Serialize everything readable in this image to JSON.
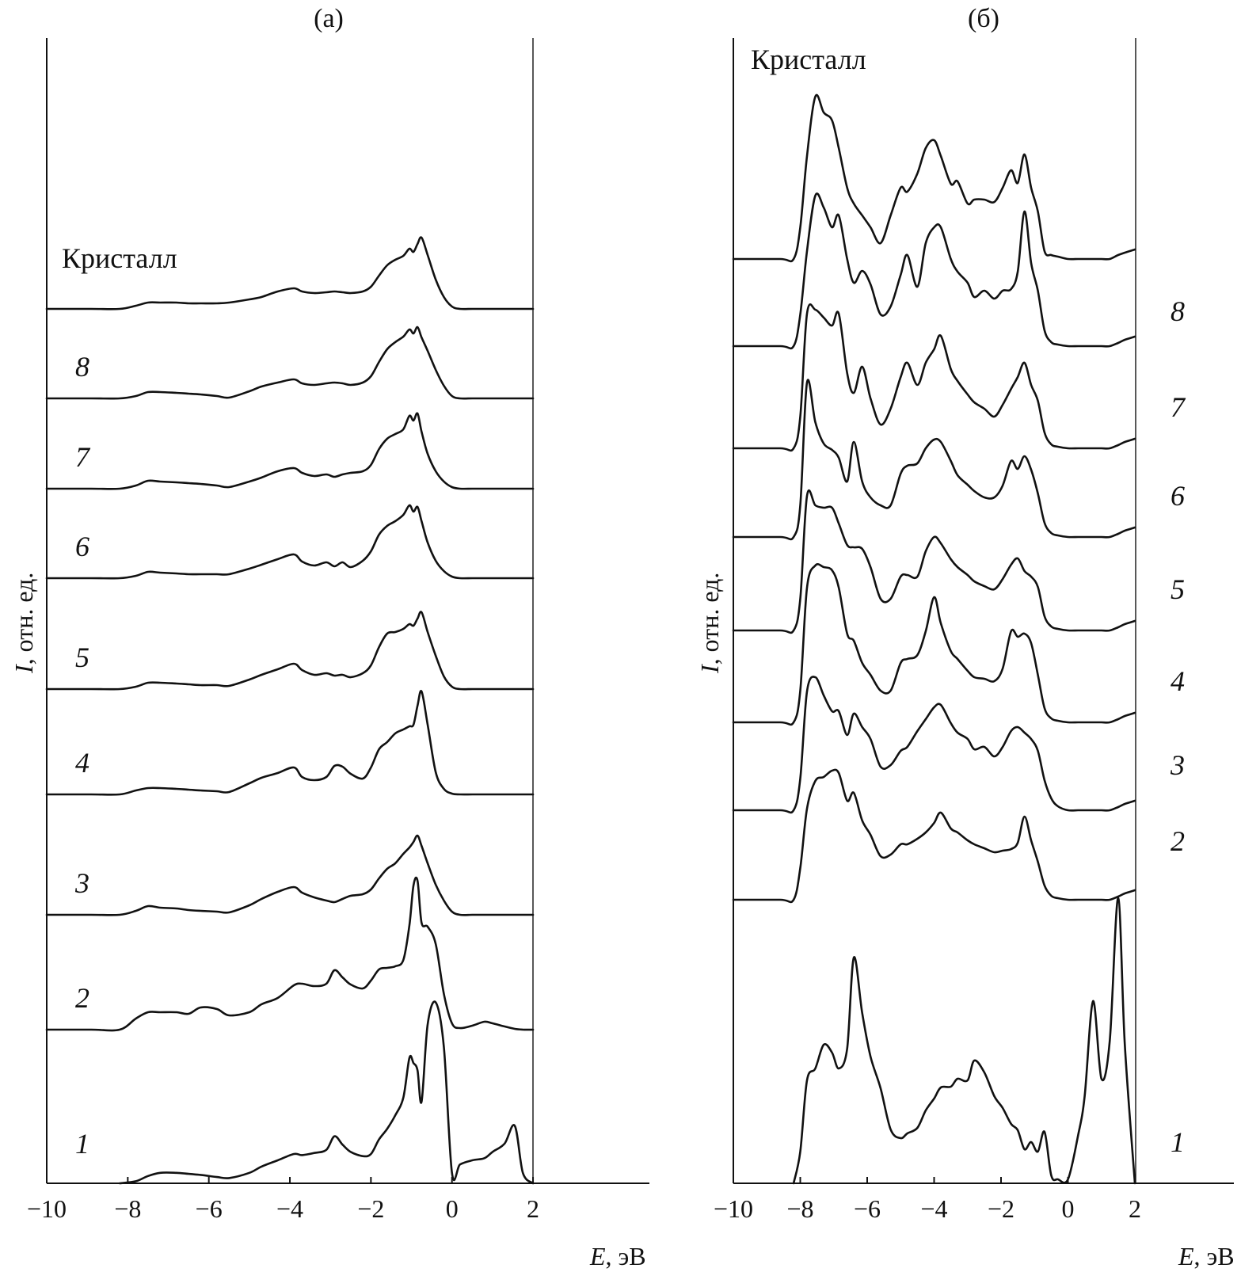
{
  "chart_data": [
    {
      "type": "line",
      "panel_title": "(а)",
      "xlabel_symbol": "E",
      "xlabel_unit": ", эВ",
      "ylabel_symbol": "I",
      "ylabel_unit": ", отн. ед.",
      "xlim": [
        -10,
        2
      ],
      "xticks": [
        "−10",
        "−8",
        "−6",
        "−4",
        "−2",
        "0",
        "2"
      ],
      "x": [
        -10,
        -8.9,
        -8.2,
        -7.8,
        -7.5,
        -7.2,
        -6.8,
        -6.5,
        -6.2,
        -5.8,
        -5.5,
        -5.0,
        -4.7,
        -4.3,
        -3.9,
        -3.7,
        -3.4,
        -3.1,
        -2.9,
        -2.7,
        -2.5,
        -2.2,
        -2.0,
        -1.8,
        -1.6,
        -1.4,
        -1.2,
        -1.05,
        -0.95,
        -0.85,
        -0.75,
        -0.6,
        -0.4,
        -0.2,
        0.0,
        0.2,
        0.5,
        0.8,
        1.0,
        1.3,
        1.55,
        1.75,
        2.0
      ],
      "series": [
        {
          "name": "Кристалл",
          "values": [
            0,
            0,
            0,
            4,
            8,
            8,
            8,
            7,
            7,
            7,
            8,
            12,
            15,
            22,
            26,
            22,
            20,
            21,
            22,
            21,
            20,
            22,
            28,
            42,
            55,
            62,
            67,
            76,
            72,
            82,
            90,
            68,
            37,
            15,
            3,
            0,
            0,
            0,
            0,
            0,
            0,
            0,
            0
          ]
        },
        {
          "name": "8",
          "values": [
            0,
            0,
            0,
            3,
            8,
            8,
            7,
            6,
            5,
            3,
            1,
            9,
            15,
            20,
            24,
            19,
            17,
            19,
            20,
            19,
            17,
            20,
            28,
            46,
            62,
            71,
            78,
            87,
            82,
            90,
            77,
            60,
            36,
            16,
            3,
            0,
            0,
            0,
            0,
            0,
            0,
            0,
            0
          ]
        },
        {
          "name": "7",
          "values": [
            0,
            0,
            0,
            4,
            10,
            9,
            8,
            7,
            6,
            4,
            2,
            9,
            14,
            22,
            26,
            20,
            16,
            18,
            15,
            18,
            20,
            22,
            30,
            50,
            63,
            69,
            75,
            92,
            86,
            95,
            72,
            44,
            22,
            9,
            2,
            0,
            0,
            0,
            0,
            0,
            0,
            0,
            0
          ]
        },
        {
          "name": "6",
          "values": [
            0,
            0,
            0,
            3,
            8,
            7,
            6,
            5,
            5,
            5,
            5,
            12,
            17,
            24,
            30,
            21,
            16,
            20,
            15,
            20,
            14,
            22,
            34,
            55,
            66,
            72,
            80,
            92,
            84,
            90,
            72,
            45,
            22,
            9,
            2,
            0,
            0,
            0,
            0,
            0,
            0,
            0,
            0
          ]
        },
        {
          "name": "5",
          "values": [
            0,
            0,
            0,
            3,
            8,
            8,
            7,
            6,
            5,
            5,
            4,
            12,
            18,
            25,
            32,
            24,
            18,
            20,
            17,
            18,
            15,
            20,
            30,
            53,
            70,
            72,
            76,
            82,
            80,
            89,
            97,
            72,
            42,
            16,
            3,
            0,
            0,
            0,
            0,
            0,
            0,
            0,
            0
          ]
        },
        {
          "name": "4",
          "values": [
            0,
            0,
            0,
            5,
            8,
            8,
            7,
            6,
            5,
            4,
            3,
            14,
            21,
            27,
            34,
            22,
            18,
            22,
            36,
            35,
            26,
            20,
            34,
            57,
            66,
            77,
            82,
            86,
            88,
            112,
            130,
            88,
            28,
            7,
            1,
            0,
            0,
            0,
            0,
            0,
            0,
            0,
            0
          ]
        },
        {
          "name": "3",
          "values": [
            0,
            0,
            0,
            5,
            11,
            9,
            8,
            6,
            5,
            4,
            3,
            12,
            20,
            29,
            35,
            28,
            22,
            18,
            16,
            20,
            24,
            26,
            32,
            46,
            58,
            65,
            77,
            85,
            92,
            100,
            87,
            65,
            38,
            18,
            4,
            0,
            0,
            0,
            0,
            0,
            0,
            0,
            0
          ]
        },
        {
          "name": "2",
          "values": [
            0,
            0,
            0,
            14,
            22,
            22,
            22,
            20,
            28,
            26,
            18,
            22,
            32,
            40,
            56,
            58,
            55,
            58,
            75,
            66,
            57,
            52,
            62,
            76,
            78,
            80,
            88,
            132,
            182,
            188,
            135,
            130,
            108,
            45,
            8,
            2,
            5,
            10,
            8,
            4,
            1,
            0,
            0
          ]
        },
        {
          "name": "1",
          "values": [
            0,
            0,
            0,
            2,
            7,
            10,
            10,
            9,
            8,
            6,
            5,
            10,
            16,
            22,
            28,
            27,
            29,
            32,
            45,
            37,
            30,
            26,
            28,
            42,
            52,
            65,
            82,
            120,
            115,
            108,
            78,
            152,
            173,
            130,
            10,
            18,
            22,
            24,
            30,
            38,
            55,
            10,
            0
          ]
        }
      ]
    },
    {
      "type": "line",
      "panel_title": "(б)",
      "xlabel_symbol": "E",
      "xlabel_unit": ", эВ",
      "ylabel_symbol": "I",
      "ylabel_unit": ", отн. ед.",
      "xlim": [
        -10,
        2
      ],
      "xticks": [
        "−10",
        "−8",
        "−6",
        "−4",
        "−2",
        "0",
        "2"
      ],
      "x": [
        -10,
        -8.6,
        -8.2,
        -8.0,
        -7.8,
        -7.55,
        -7.3,
        -7.05,
        -6.85,
        -6.6,
        -6.4,
        -6.15,
        -5.9,
        -5.6,
        -5.3,
        -5.0,
        -4.8,
        -4.5,
        -4.25,
        -4.0,
        -3.8,
        -3.5,
        -3.3,
        -3.0,
        -2.8,
        -2.5,
        -2.2,
        -1.95,
        -1.7,
        -1.5,
        -1.3,
        -1.1,
        -0.9,
        -0.7,
        -0.5,
        -0.3,
        0.0,
        0.3,
        0.5,
        0.75,
        1.0,
        1.25,
        1.5,
        1.7,
        2.0
      ],
      "series": [
        {
          "name": "Кристалл",
          "values": [
            0,
            0,
            0,
            40,
            130,
            205,
            185,
            175,
            140,
            90,
            70,
            55,
            40,
            20,
            55,
            90,
            85,
            108,
            140,
            150,
            130,
            95,
            98,
            70,
            75,
            75,
            72,
            90,
            112,
            96,
            132,
            90,
            60,
            10,
            5,
            3,
            0,
            0,
            0,
            0,
            0,
            0,
            5,
            8,
            12
          ]
        },
        {
          "name": "8",
          "values": [
            0,
            0,
            0,
            40,
            120,
            190,
            175,
            150,
            165,
            110,
            80,
            95,
            78,
            40,
            50,
            90,
            115,
            75,
            130,
            150,
            150,
            110,
            94,
            80,
            62,
            70,
            60,
            70,
            72,
            94,
            170,
            105,
            70,
            20,
            5,
            2,
            0,
            0,
            0,
            0,
            0,
            0,
            4,
            8,
            12
          ]
        },
        {
          "name": "7",
          "values": [
            0,
            0,
            0,
            40,
            170,
            175,
            165,
            155,
            170,
            95,
            70,
            103,
            63,
            30,
            50,
            90,
            108,
            80,
            108,
            125,
            142,
            100,
            85,
            68,
            58,
            50,
            40,
            55,
            75,
            90,
            108,
            80,
            60,
            20,
            5,
            2,
            0,
            0,
            0,
            0,
            0,
            0,
            4,
            8,
            12
          ]
        },
        {
          "name": "6",
          "values": [
            0,
            0,
            0,
            40,
            195,
            145,
            118,
            110,
            100,
            70,
            120,
            70,
            50,
            40,
            40,
            80,
            90,
            93,
            112,
            123,
            120,
            96,
            78,
            66,
            58,
            50,
            50,
            65,
            96,
            86,
            102,
            85,
            55,
            18,
            5,
            2,
            0,
            0,
            0,
            0,
            0,
            0,
            4,
            8,
            12
          ]
        },
        {
          "name": "5",
          "values": [
            0,
            0,
            0,
            40,
            170,
            158,
            155,
            155,
            135,
            108,
            105,
            103,
            80,
            40,
            40,
            68,
            70,
            68,
            100,
            118,
            110,
            90,
            80,
            70,
            62,
            56,
            52,
            65,
            83,
            91,
            75,
            68,
            55,
            18,
            5,
            2,
            0,
            0,
            0,
            0,
            0,
            0,
            4,
            8,
            12
          ]
        },
        {
          "name": "4",
          "values": [
            0,
            0,
            0,
            40,
            170,
            198,
            196,
            192,
            170,
            112,
            103,
            75,
            60,
            40,
            40,
            75,
            80,
            85,
            115,
            158,
            125,
            90,
            80,
            65,
            57,
            55,
            52,
            68,
            115,
            108,
            112,
            100,
            60,
            18,
            5,
            2,
            0,
            0,
            0,
            0,
            0,
            0,
            4,
            8,
            12
          ]
        },
        {
          "name": "3",
          "values": [
            0,
            0,
            0,
            40,
            150,
            168,
            145,
            125,
            125,
            95,
            122,
            105,
            90,
            55,
            57,
            75,
            80,
            100,
            115,
            130,
            133,
            110,
            98,
            90,
            77,
            80,
            68,
            80,
            100,
            105,
            98,
            90,
            75,
            38,
            15,
            5,
            0,
            0,
            0,
            0,
            0,
            0,
            4,
            8,
            12
          ]
        },
        {
          "name": "2",
          "values": [
            0,
            0,
            0,
            40,
            115,
            150,
            155,
            163,
            160,
            125,
            135,
            100,
            82,
            55,
            57,
            70,
            70,
            77,
            85,
            97,
            110,
            90,
            85,
            75,
            70,
            65,
            60,
            62,
            64,
            72,
            105,
            75,
            48,
            18,
            5,
            2,
            0,
            0,
            0,
            0,
            0,
            0,
            4,
            8,
            12
          ]
        },
        {
          "name": "1",
          "values": [
            0,
            0,
            0,
            40,
            130,
            145,
            175,
            165,
            145,
            170,
            285,
            215,
            160,
            120,
            68,
            57,
            63,
            70,
            92,
            107,
            121,
            122,
            132,
            130,
            155,
            140,
            110,
            95,
            75,
            67,
            43,
            52,
            40,
            65,
            10,
            5,
            5,
            60,
            110,
            230,
            132,
            180,
            360,
            175,
            0
          ]
        }
      ]
    }
  ]
}
